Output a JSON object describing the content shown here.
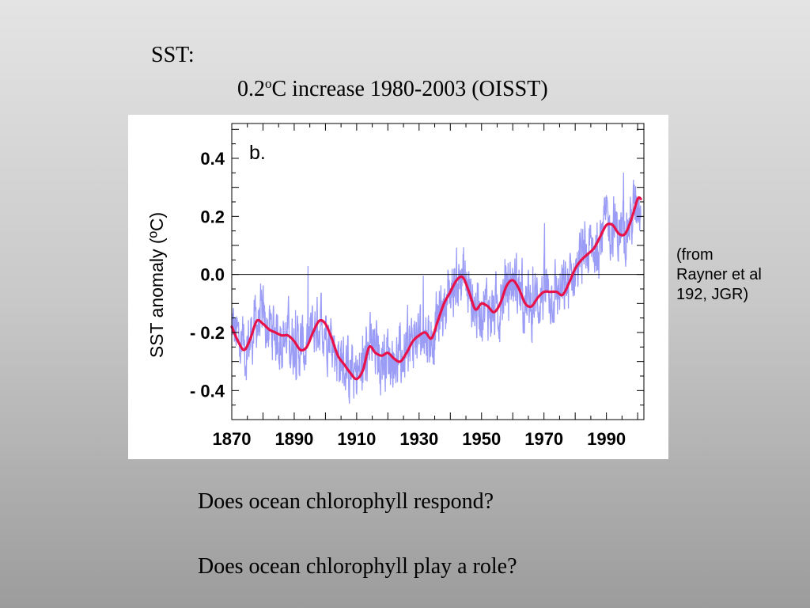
{
  "slide": {
    "title": "SST:",
    "subtitle_prefix": "0.2",
    "subtitle_sup": "o",
    "subtitle_rest": "C increase 1980-2003 (OISST)",
    "citation_lines": [
      "(from",
      "Rayner et al",
      "192, JGR)"
    ],
    "question_1": "Does ocean chlorophyll respond?",
    "question_2": "Does ocean chlorophyll play a role?"
  },
  "chart_data": {
    "type": "line",
    "panel_label": "b.",
    "xlabel": "",
    "ylabel": "SST anomaly (ºC)",
    "xlim": [
      1870,
      2002
    ],
    "ylim": [
      -0.5,
      0.52
    ],
    "x_ticks": [
      1870,
      1890,
      1910,
      1930,
      1950,
      1970,
      1990
    ],
    "x_tick_labels": [
      "1870",
      "1890",
      "1910",
      "1930",
      "1950",
      "1970",
      "1990"
    ],
    "y_ticks": [
      0.4,
      0.2,
      0.0,
      -0.2,
      -0.4
    ],
    "y_tick_labels": [
      "0.4",
      "0.2",
      "0.0",
      "- 0.2",
      "- 0.4"
    ],
    "reference_line": 0.0,
    "grid": false,
    "legend": "none",
    "series": [
      {
        "style": "smoothed",
        "color": "#e8124a",
        "x": [
          1870,
          1872,
          1874,
          1876,
          1878,
          1880,
          1882,
          1884,
          1886,
          1888,
          1890,
          1892,
          1894,
          1896,
          1898,
          1900,
          1902,
          1904,
          1906,
          1908,
          1910,
          1912,
          1914,
          1916,
          1918,
          1920,
          1922,
          1924,
          1926,
          1928,
          1930,
          1932,
          1934,
          1936,
          1938,
          1940,
          1942,
          1944,
          1946,
          1948,
          1950,
          1952,
          1954,
          1956,
          1958,
          1960,
          1962,
          1964,
          1966,
          1968,
          1970,
          1972,
          1974,
          1976,
          1978,
          1980,
          1982,
          1984,
          1986,
          1988,
          1990,
          1992,
          1994,
          1996,
          1998,
          2000,
          2001
        ],
        "values": [
          -0.18,
          -0.23,
          -0.26,
          -0.22,
          -0.16,
          -0.17,
          -0.19,
          -0.2,
          -0.21,
          -0.21,
          -0.23,
          -0.26,
          -0.25,
          -0.2,
          -0.16,
          -0.17,
          -0.22,
          -0.28,
          -0.31,
          -0.34,
          -0.36,
          -0.33,
          -0.25,
          -0.27,
          -0.28,
          -0.27,
          -0.29,
          -0.3,
          -0.27,
          -0.23,
          -0.21,
          -0.2,
          -0.22,
          -0.16,
          -0.1,
          -0.06,
          -0.02,
          -0.01,
          -0.06,
          -0.12,
          -0.1,
          -0.11,
          -0.13,
          -0.1,
          -0.04,
          -0.02,
          -0.05,
          -0.1,
          -0.11,
          -0.08,
          -0.06,
          -0.06,
          -0.06,
          -0.07,
          -0.03,
          0.02,
          0.05,
          0.07,
          0.09,
          0.13,
          0.17,
          0.17,
          0.14,
          0.14,
          0.19,
          0.26,
          0.26
        ]
      }
    ]
  }
}
